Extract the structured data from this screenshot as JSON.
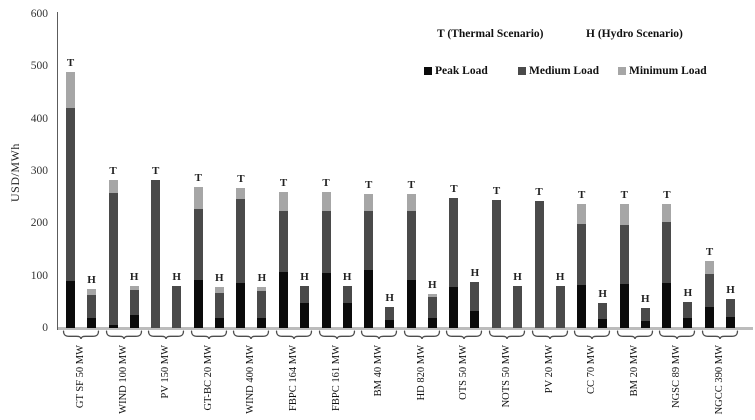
{
  "y_axis": {
    "label": "USD/MWh",
    "ticks": [
      "600",
      "500",
      "400",
      "300",
      "200",
      "100",
      "0"
    ],
    "min": 0,
    "max": 600
  },
  "scenario_legend": {
    "thermal": "T (Thermal Scenario)",
    "hydro": "H (Hydro Scenario)",
    "thermal_letter": "T",
    "hydro_letter": "H"
  },
  "series_legend": [
    {
      "label": "Peak Load",
      "color": "#0b0b0b"
    },
    {
      "label": "Medium Load",
      "color": "#4a4a4a"
    },
    {
      "label": "Minimum Load",
      "color": "#a6a6a6"
    }
  ],
  "chart_data": {
    "type": "bar",
    "stacked": true,
    "title": "",
    "xlabel": "",
    "ylabel": "USD/MWh",
    "ylim": [
      0,
      600
    ],
    "grid": false,
    "legend_position": "top-right",
    "series_names": [
      "Peak Load",
      "Medium Load",
      "Minimum Load"
    ],
    "scenarios": [
      "T",
      "H"
    ],
    "note": "Each category has two stacked bars: T (Thermal Scenario) and H (Hydro Scenario). Segment values are increments in USD/MWh, order [Peak, Medium, Minimum].",
    "categories": [
      {
        "label": "GT SF 50 MW",
        "T": [
          90,
          330,
          70
        ],
        "H": [
          20,
          44,
          11
        ]
      },
      {
        "label": "WIND 100 MW",
        "T": [
          5,
          253,
          25
        ],
        "H": [
          25,
          47,
          8
        ]
      },
      {
        "label": "PV 150 MW",
        "T": [
          0,
          283,
          0
        ],
        "H": [
          0,
          80,
          0
        ]
      },
      {
        "label": "GT-BC 20 MW",
        "T": [
          92,
          136,
          42
        ],
        "H": [
          20,
          46,
          12
        ]
      },
      {
        "label": "WIND 400 MW",
        "T": [
          86,
          160,
          21
        ],
        "H": [
          20,
          50,
          8
        ]
      },
      {
        "label": "FBPC 164 MW",
        "T": [
          107,
          116,
          37
        ],
        "H": [
          48,
          32,
          0
        ]
      },
      {
        "label": "FBPC 161 MW",
        "T": [
          106,
          118,
          35
        ],
        "H": [
          47,
          33,
          0
        ]
      },
      {
        "label": "BM 40 MW",
        "T": [
          111,
          113,
          33
        ],
        "H": [
          15,
          25,
          0
        ]
      },
      {
        "label": "HD 820 MW",
        "T": [
          91,
          132,
          33
        ],
        "H": [
          20,
          40,
          5
        ]
      },
      {
        "label": "OTS 50 MW",
        "T": [
          79,
          170,
          0
        ],
        "H": [
          33,
          55,
          0
        ]
      },
      {
        "label": "NOTS 50 MW",
        "T": [
          0,
          244,
          0
        ],
        "H": [
          0,
          80,
          0
        ]
      },
      {
        "label": "PV 20 MW",
        "T": [
          0,
          243,
          0
        ],
        "H": [
          0,
          80,
          0
        ]
      },
      {
        "label": "CC 70 MW",
        "T": [
          83,
          116,
          38
        ],
        "H": [
          17,
          30,
          0
        ]
      },
      {
        "label": "BM 20 MW",
        "T": [
          85,
          112,
          40
        ],
        "H": [
          14,
          24,
          0
        ]
      },
      {
        "label": "NGSC 89 MW",
        "T": [
          86,
          116,
          35
        ],
        "H": [
          20,
          30,
          0
        ]
      },
      {
        "label": "NGCC 390 MW",
        "T": [
          40,
          64,
          24
        ],
        "H": [
          22,
          33,
          0
        ]
      }
    ]
  }
}
